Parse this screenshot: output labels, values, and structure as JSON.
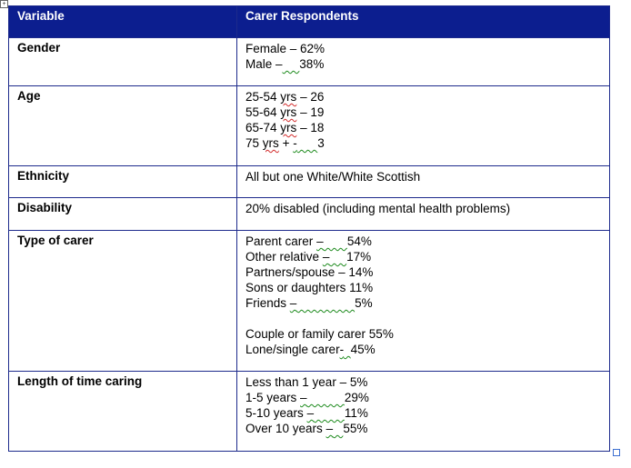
{
  "table": {
    "headers": [
      "Variable",
      "Carer Respondents"
    ],
    "rows": {
      "gender": {
        "label": "Gender",
        "lines": [
          "Female – 62%",
          "Male –",
          "38%"
        ]
      },
      "age": {
        "label": "Age",
        "lines": [
          "25-54",
          "yrs",
          "– 26",
          "55-64",
          "yrs",
          "– 19",
          "65-74",
          "yrs",
          "– 18",
          "75",
          "yrs",
          "+",
          "-",
          "3"
        ]
      },
      "ethnicity": {
        "label": "Ethnicity",
        "lines": [
          "All but one White/White Scottish"
        ]
      },
      "disability": {
        "label": "Disability",
        "lines": [
          "20% disabled (including mental health problems)"
        ]
      },
      "type_of_carer": {
        "label": "Type of carer",
        "lines": [
          "Parent carer",
          "–",
          "54%",
          "Other relative",
          "–",
          "17%",
          "Partners/spouse",
          "– 14%",
          "Sons or daughters 11%",
          "Friends",
          "–",
          "5%",
          "Couple or family carer 55%",
          "Lone/single carer",
          "-",
          "45%"
        ]
      },
      "length_of_time": {
        "label": "Length of time caring",
        "lines": [
          "Less than 1 year – 5%",
          "1-5 years",
          "–",
          "29%",
          "5-10 years",
          "–",
          "11%",
          "Over 10 years",
          "–",
          "55%"
        ]
      }
    }
  }
}
